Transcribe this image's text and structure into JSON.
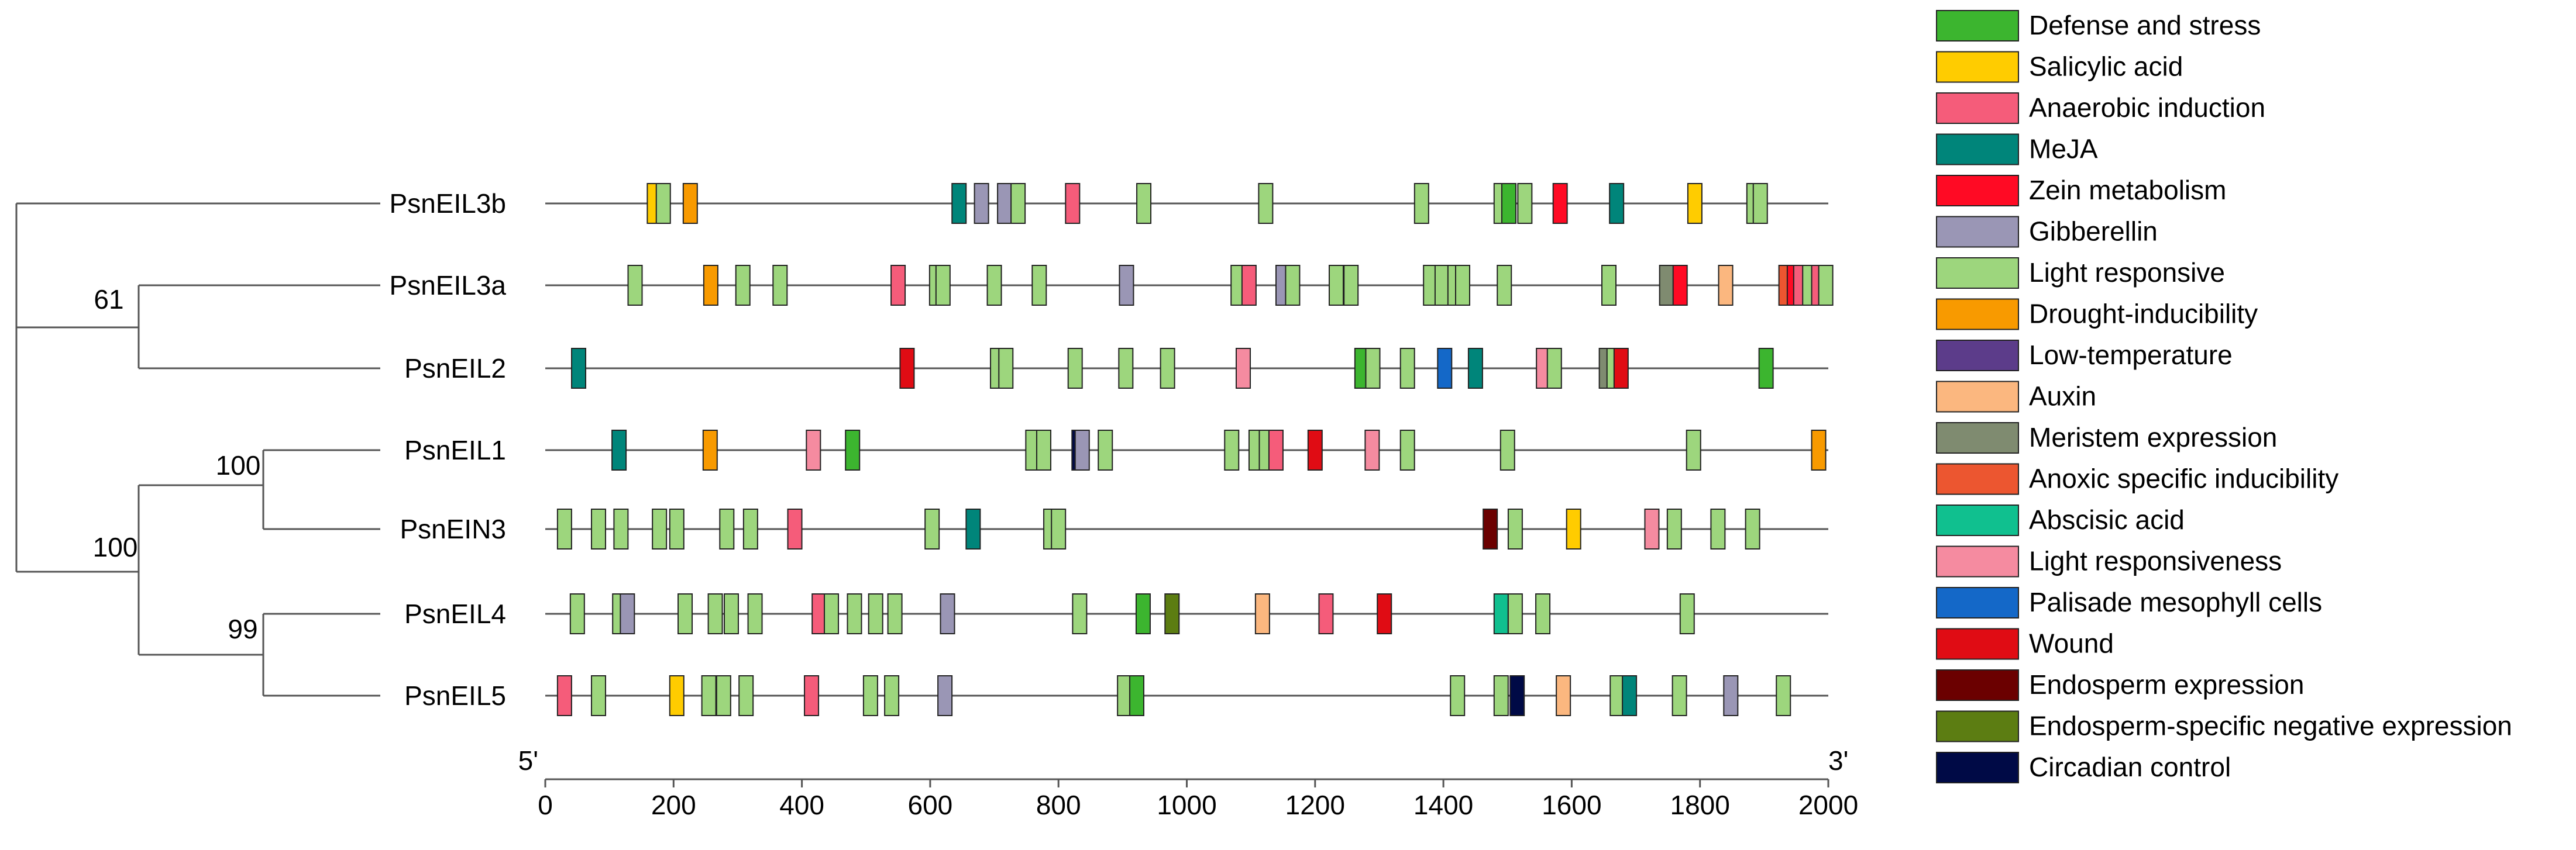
{
  "chart_data": {
    "type": "diagram",
    "x_axis": {
      "min": 0,
      "max": 2000,
      "ticks": [
        0,
        200,
        400,
        600,
        800,
        1000,
        1200,
        1400,
        1600,
        1800,
        2000
      ],
      "start_label": "5'",
      "end_label": "3'"
    },
    "tree": {
      "bootstrap": [
        {
          "node": "EIL3a-EIL2",
          "value": "61"
        },
        {
          "node": "EIL1-EIN3",
          "value": "100"
        },
        {
          "node": "group-EIL1-EIN3-EIL4-EIL5",
          "value": "100"
        },
        {
          "node": "EIL4-EIL5",
          "value": "99"
        }
      ]
    },
    "categories": [
      {
        "name": "Defense and stress",
        "color": "#3cb52f"
      },
      {
        "name": "Salicylic acid",
        "color": "#ffcc00"
      },
      {
        "name": "Anaerobic induction",
        "color": "#f55c7a"
      },
      {
        "name": "MeJA",
        "color": "#00857a"
      },
      {
        "name": "Zein metabolism",
        "color": "#ff0a24"
      },
      {
        "name": "Gibberellin",
        "color": "#9a96b5"
      },
      {
        "name": "Light responsive",
        "color": "#9dd67d"
      },
      {
        "name": "Drought-inducibility",
        "color": "#f89a00"
      },
      {
        "name": "Low-temperature",
        "color": "#5c3c8a"
      },
      {
        "name": "Auxin",
        "color": "#fbb77f"
      },
      {
        "name": "Meristem expression",
        "color": "#7f8b70"
      },
      {
        "name": "Anoxic specific inducibility",
        "color": "#ec5630"
      },
      {
        "name": "Abscisic acid",
        "color": "#10c08f"
      },
      {
        "name": "Light responsiveness",
        "color": "#f58ba0"
      },
      {
        "name": "Palisade mesophyll cells",
        "color": "#1468c8"
      },
      {
        "name": "Wound",
        "color": "#e00c14"
      },
      {
        "name": "Endosperm expression",
        "color": "#6b0000"
      },
      {
        "name": "Endosperm-specific negative expression",
        "color": "#5c7d12"
      },
      {
        "name": "Circadian control",
        "color": "#000a46"
      }
    ],
    "genes": [
      {
        "name": "PsnEIL3b",
        "elements": [
          {
            "pos": 170,
            "cat": 1
          },
          {
            "pos": 184,
            "cat": 6
          },
          {
            "pos": 226,
            "cat": 7
          },
          {
            "pos": 645,
            "cat": 3
          },
          {
            "pos": 680,
            "cat": 5
          },
          {
            "pos": 716,
            "cat": 5
          },
          {
            "pos": 737,
            "cat": 6
          },
          {
            "pos": 822,
            "cat": 2
          },
          {
            "pos": 933,
            "cat": 6
          },
          {
            "pos": 1123,
            "cat": 6
          },
          {
            "pos": 1366,
            "cat": 6
          },
          {
            "pos": 1490,
            "cat": 6
          },
          {
            "pos": 1502,
            "cat": 0
          },
          {
            "pos": 1527,
            "cat": 6
          },
          {
            "pos": 1582,
            "cat": 4
          },
          {
            "pos": 1670,
            "cat": 3
          },
          {
            "pos": 1792,
            "cat": 1
          },
          {
            "pos": 1884,
            "cat": 6
          },
          {
            "pos": 1894,
            "cat": 6
          }
        ]
      },
      {
        "name": "PsnEIL3a",
        "elements": [
          {
            "pos": 140,
            "cat": 6
          },
          {
            "pos": 258,
            "cat": 7
          },
          {
            "pos": 308,
            "cat": 6
          },
          {
            "pos": 366,
            "cat": 6
          },
          {
            "pos": 550,
            "cat": 2
          },
          {
            "pos": 610,
            "cat": 6
          },
          {
            "pos": 620,
            "cat": 6
          },
          {
            "pos": 700,
            "cat": 6
          },
          {
            "pos": 770,
            "cat": 6
          },
          {
            "pos": 906,
            "cat": 5
          },
          {
            "pos": 1080,
            "cat": 6
          },
          {
            "pos": 1097,
            "cat": 2
          },
          {
            "pos": 1150,
            "cat": 5
          },
          {
            "pos": 1165,
            "cat": 6
          },
          {
            "pos": 1233,
            "cat": 6
          },
          {
            "pos": 1256,
            "cat": 6
          },
          {
            "pos": 1380,
            "cat": 6
          },
          {
            "pos": 1398,
            "cat": 6
          },
          {
            "pos": 1418,
            "cat": 6
          },
          {
            "pos": 1430,
            "cat": 6
          },
          {
            "pos": 1495,
            "cat": 6
          },
          {
            "pos": 1658,
            "cat": 6
          },
          {
            "pos": 1748,
            "cat": 10
          },
          {
            "pos": 1769,
            "cat": 4
          },
          {
            "pos": 1840,
            "cat": 9
          },
          {
            "pos": 1934,
            "cat": 11
          },
          {
            "pos": 1947,
            "cat": 4
          },
          {
            "pos": 1957,
            "cat": 2
          },
          {
            "pos": 1971,
            "cat": 6
          },
          {
            "pos": 1985,
            "cat": 2
          },
          {
            "pos": 1996,
            "cat": 6
          }
        ]
      },
      {
        "name": "PsnEIL2",
        "elements": [
          {
            "pos": 52,
            "cat": 3
          },
          {
            "pos": 564,
            "cat": 15
          },
          {
            "pos": 705,
            "cat": 6
          },
          {
            "pos": 718,
            "cat": 6
          },
          {
            "pos": 826,
            "cat": 6
          },
          {
            "pos": 905,
            "cat": 6
          },
          {
            "pos": 970,
            "cat": 6
          },
          {
            "pos": 1088,
            "cat": 13
          },
          {
            "pos": 1273,
            "cat": 0
          },
          {
            "pos": 1290,
            "cat": 6
          },
          {
            "pos": 1344,
            "cat": 6
          },
          {
            "pos": 1402,
            "cat": 14
          },
          {
            "pos": 1450,
            "cat": 3
          },
          {
            "pos": 1556,
            "cat": 13
          },
          {
            "pos": 1573,
            "cat": 6
          },
          {
            "pos": 1654,
            "cat": 10
          },
          {
            "pos": 1666,
            "cat": 6
          },
          {
            "pos": 1677,
            "cat": 15
          },
          {
            "pos": 1903,
            "cat": 0
          }
        ]
      },
      {
        "name": "PsnEIL1",
        "elements": [
          {
            "pos": 115,
            "cat": 3
          },
          {
            "pos": 257,
            "cat": 7
          },
          {
            "pos": 418,
            "cat": 13
          },
          {
            "pos": 479,
            "cat": 0
          },
          {
            "pos": 760,
            "cat": 6
          },
          {
            "pos": 777,
            "cat": 6
          },
          {
            "pos": 832,
            "cat": 18
          },
          {
            "pos": 837,
            "cat": 5
          },
          {
            "pos": 873,
            "cat": 6
          },
          {
            "pos": 1070,
            "cat": 6
          },
          {
            "pos": 1108,
            "cat": 6
          },
          {
            "pos": 1124,
            "cat": 6
          },
          {
            "pos": 1139,
            "cat": 2
          },
          {
            "pos": 1200,
            "cat": 15
          },
          {
            "pos": 1289,
            "cat": 13
          },
          {
            "pos": 1344,
            "cat": 6
          },
          {
            "pos": 1500,
            "cat": 6
          },
          {
            "pos": 1790,
            "cat": 6
          },
          {
            "pos": 1985,
            "cat": 7
          }
        ]
      },
      {
        "name": "PsnEIN3",
        "elements": [
          {
            "pos": 30,
            "cat": 6
          },
          {
            "pos": 83,
            "cat": 6
          },
          {
            "pos": 118,
            "cat": 6
          },
          {
            "pos": 178,
            "cat": 6
          },
          {
            "pos": 205,
            "cat": 6
          },
          {
            "pos": 283,
            "cat": 6
          },
          {
            "pos": 320,
            "cat": 6
          },
          {
            "pos": 389,
            "cat": 2
          },
          {
            "pos": 603,
            "cat": 6
          },
          {
            "pos": 667,
            "cat": 3
          },
          {
            "pos": 788,
            "cat": 6
          },
          {
            "pos": 800,
            "cat": 6
          },
          {
            "pos": 1473,
            "cat": 16
          },
          {
            "pos": 1512,
            "cat": 6
          },
          {
            "pos": 1603,
            "cat": 1
          },
          {
            "pos": 1725,
            "cat": 13
          },
          {
            "pos": 1760,
            "cat": 6
          },
          {
            "pos": 1828,
            "cat": 6
          },
          {
            "pos": 1882,
            "cat": 6
          }
        ]
      },
      {
        "name": "PsnEIL4",
        "elements": [
          {
            "pos": 50,
            "cat": 6
          },
          {
            "pos": 116,
            "cat": 6
          },
          {
            "pos": 128,
            "cat": 5
          },
          {
            "pos": 218,
            "cat": 6
          },
          {
            "pos": 265,
            "cat": 6
          },
          {
            "pos": 290,
            "cat": 6
          },
          {
            "pos": 327,
            "cat": 6
          },
          {
            "pos": 427,
            "cat": 2
          },
          {
            "pos": 446,
            "cat": 6
          },
          {
            "pos": 482,
            "cat": 6
          },
          {
            "pos": 515,
            "cat": 6
          },
          {
            "pos": 545,
            "cat": 6
          },
          {
            "pos": 627,
            "cat": 5
          },
          {
            "pos": 833,
            "cat": 6
          },
          {
            "pos": 932,
            "cat": 0
          },
          {
            "pos": 977,
            "cat": 17
          },
          {
            "pos": 1118,
            "cat": 9
          },
          {
            "pos": 1217,
            "cat": 2
          },
          {
            "pos": 1308,
            "cat": 15
          },
          {
            "pos": 1490,
            "cat": 12
          },
          {
            "pos": 1512,
            "cat": 6
          },
          {
            "pos": 1555,
            "cat": 6
          },
          {
            "pos": 1780,
            "cat": 6
          }
        ]
      },
      {
        "name": "PsnEIL5",
        "elements": [
          {
            "pos": 30,
            "cat": 2
          },
          {
            "pos": 83,
            "cat": 6
          },
          {
            "pos": 205,
            "cat": 1
          },
          {
            "pos": 255,
            "cat": 6
          },
          {
            "pos": 278,
            "cat": 6
          },
          {
            "pos": 313,
            "cat": 6
          },
          {
            "pos": 415,
            "cat": 2
          },
          {
            "pos": 507,
            "cat": 6
          },
          {
            "pos": 540,
            "cat": 6
          },
          {
            "pos": 623,
            "cat": 5
          },
          {
            "pos": 903,
            "cat": 6
          },
          {
            "pos": 922,
            "cat": 0
          },
          {
            "pos": 1422,
            "cat": 6
          },
          {
            "pos": 1490,
            "cat": 6
          },
          {
            "pos": 1515,
            "cat": 18
          },
          {
            "pos": 1587,
            "cat": 9
          },
          {
            "pos": 1671,
            "cat": 6
          },
          {
            "pos": 1690,
            "cat": 3
          },
          {
            "pos": 1768,
            "cat": 6
          },
          {
            "pos": 1848,
            "cat": 5
          },
          {
            "pos": 1930,
            "cat": 6
          }
        ]
      }
    ]
  }
}
